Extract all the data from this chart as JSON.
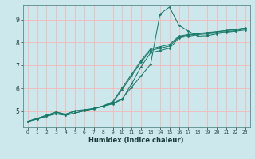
{
  "xlabel": "Humidex (Indice chaleur)",
  "bg_color": "#cce8ec",
  "grid_color": "#f5b8b8",
  "line_color": "#1a7a6a",
  "xlim": [
    -0.5,
    23.5
  ],
  "ylim": [
    4.3,
    9.65
  ],
  "xticks": [
    0,
    1,
    2,
    3,
    4,
    5,
    6,
    7,
    8,
    9,
    10,
    11,
    12,
    13,
    14,
    15,
    16,
    17,
    18,
    19,
    20,
    21,
    22,
    23
  ],
  "yticks": [
    5,
    6,
    7,
    8,
    9
  ],
  "lines": [
    {
      "x": [
        0,
        1,
        2,
        3,
        4,
        5,
        6,
        7,
        8,
        9,
        10,
        11,
        12,
        13,
        14,
        15,
        16,
        17,
        18,
        19,
        20,
        21,
        22,
        23
      ],
      "y": [
        4.55,
        4.65,
        4.78,
        4.9,
        4.82,
        4.92,
        5.02,
        5.12,
        5.22,
        5.35,
        5.55,
        6.05,
        6.55,
        7.05,
        9.25,
        9.55,
        8.75,
        8.5,
        8.28,
        8.3,
        8.38,
        8.45,
        8.5,
        8.55
      ]
    },
    {
      "x": [
        0,
        1,
        2,
        3,
        4,
        5,
        6,
        7,
        8,
        9,
        10,
        11,
        12,
        13,
        14,
        15,
        16,
        17,
        18,
        19,
        20,
        21,
        22,
        23
      ],
      "y": [
        4.55,
        4.65,
        4.78,
        4.88,
        4.82,
        4.92,
        5.02,
        5.12,
        5.22,
        5.32,
        5.52,
        6.2,
        6.95,
        7.55,
        7.65,
        7.75,
        8.2,
        8.27,
        8.35,
        8.38,
        8.42,
        8.48,
        8.52,
        8.6
      ]
    },
    {
      "x": [
        0,
        1,
        2,
        3,
        4,
        5,
        6,
        7,
        8,
        9,
        10,
        11,
        12,
        13,
        14,
        15,
        16,
        17,
        18,
        19,
        20,
        21,
        22,
        23
      ],
      "y": [
        4.55,
        4.68,
        4.82,
        4.95,
        4.85,
        5.0,
        5.05,
        5.1,
        5.22,
        5.38,
        5.95,
        6.55,
        7.15,
        7.65,
        7.75,
        7.85,
        8.25,
        8.32,
        8.38,
        8.42,
        8.47,
        8.52,
        8.57,
        8.62
      ]
    },
    {
      "x": [
        0,
        1,
        2,
        3,
        4,
        5,
        6,
        7,
        8,
        9,
        10,
        11,
        12,
        13,
        14,
        15,
        16,
        17,
        18,
        19,
        20,
        21,
        22,
        23
      ],
      "y": [
        4.55,
        4.68,
        4.82,
        4.97,
        4.87,
        5.02,
        5.07,
        5.12,
        5.24,
        5.42,
        6.02,
        6.62,
        7.22,
        7.72,
        7.82,
        7.92,
        8.28,
        8.35,
        8.4,
        8.44,
        8.48,
        8.53,
        8.58,
        8.63
      ]
    }
  ]
}
